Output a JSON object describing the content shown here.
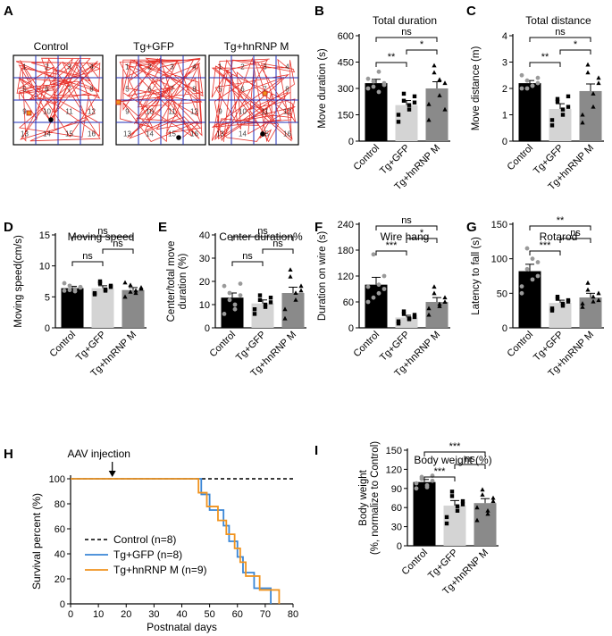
{
  "panels": {
    "A": {
      "letter": "A",
      "titles": [
        "Control",
        "Tg+GFP",
        "Tg+hnRNP M"
      ],
      "grid_numbers": [
        "1",
        "2",
        "3",
        "4",
        "5",
        "6",
        "7",
        "8",
        "9",
        "10",
        "11",
        "12",
        "13",
        "14",
        "15",
        "16"
      ]
    }
  },
  "colors": {
    "control": "#000000",
    "gfp": "#d4d4d4",
    "hnrnp": "#8a8a8a",
    "track": "#e8332c",
    "grid": "#1f2fb8",
    "curve_gfp": "#3a86d6",
    "curve_hnrnp": "#f0931e"
  },
  "chart_data": [
    {
      "panel": "B",
      "type": "bar",
      "title": "Total duration",
      "ylabel": "Move duration (s)",
      "ylim": [
        0,
        600
      ],
      "yticks": [
        0,
        150,
        300,
        450,
        600
      ],
      "categories": [
        "Control",
        "Tg+GFP",
        "Tg+hnRNP M"
      ],
      "values": [
        330,
        205,
        300
      ],
      "errors": [
        22,
        26,
        38
      ],
      "points": [
        [
          300,
          340,
          280,
          330,
          355,
          310,
          395,
          320
        ],
        [
          110,
          270,
          180,
          220,
          150,
          230,
          205,
          255
        ],
        [
          120,
          430,
          260,
          330,
          210,
          390,
          350,
          180
        ]
      ],
      "sig": [
        {
          "a": 0,
          "b": 1,
          "label": "**"
        },
        {
          "a": 1,
          "b": 2,
          "label": "*"
        },
        {
          "a": 0,
          "b": 2,
          "label": "ns"
        }
      ]
    },
    {
      "panel": "C",
      "type": "bar",
      "title": "Total distance",
      "ylabel": "Move distance (m)",
      "ylim": [
        0,
        4
      ],
      "yticks": [
        0,
        1,
        2,
        3,
        4
      ],
      "categories": [
        "Control",
        "Tg+GFP",
        "Tg+hnRNP M"
      ],
      "values": [
        2.2,
        1.22,
        1.9
      ],
      "errors": [
        0.1,
        0.2,
        0.27
      ],
      "points": [
        [
          2.0,
          2.3,
          2.1,
          2.2,
          2.5,
          2.0,
          2.1,
          2.4
        ],
        [
          0.6,
          1.6,
          1.0,
          1.3,
          0.8,
          1.5,
          1.2,
          1.7
        ],
        [
          0.7,
          2.9,
          1.3,
          2.2,
          1.0,
          2.6,
          1.8,
          2.4
        ]
      ],
      "sig": [
        {
          "a": 0,
          "b": 1,
          "label": "**"
        },
        {
          "a": 1,
          "b": 2,
          "label": "*"
        },
        {
          "a": 0,
          "b": 2,
          "label": "ns"
        }
      ]
    },
    {
      "panel": "D",
      "type": "bar",
      "title": "Moving speed",
      "ylabel": "Moving speed(cm/s)",
      "ylim": [
        0,
        15
      ],
      "yticks": [
        0,
        5,
        10,
        15
      ],
      "categories": [
        "Control",
        "Tg+GFP",
        "Tg+hnRNP M"
      ],
      "values": [
        6.4,
        6.4,
        6.1
      ],
      "errors": [
        0.3,
        0.4,
        0.4
      ],
      "points": [
        [
          6.0,
          6.8,
          5.9,
          6.5,
          7.2,
          6.1,
          6.3,
          6.6
        ],
        [
          5.4,
          7.5,
          6.0,
          6.8,
          5.6,
          7.2,
          6.2,
          6.6
        ],
        [
          5.0,
          6.9,
          5.6,
          6.3,
          7.3,
          5.8,
          6.0,
          6.5
        ]
      ],
      "sig": [
        {
          "a": 0,
          "b": 1,
          "label": "ns"
        },
        {
          "a": 1,
          "b": 2,
          "label": "ns"
        },
        {
          "a": 0,
          "b": 2,
          "label": "ns"
        }
      ]
    },
    {
      "panel": "E",
      "type": "bar",
      "title": "Center duration%",
      "ylabel": "Center/total move duration (%)",
      "ylim": [
        0,
        40
      ],
      "yticks": [
        0,
        10,
        20,
        30,
        40
      ],
      "categories": [
        "Control",
        "Tg+GFP",
        "Tg+hnRNP M"
      ],
      "values": [
        13,
        10.5,
        15
      ],
      "errors": [
        2.0,
        1.5,
        2.5
      ],
      "points": [
        [
          6,
          15,
          10,
          14,
          18,
          12,
          8,
          19
        ],
        [
          6,
          14,
          9,
          11,
          8,
          12,
          10,
          13
        ],
        [
          4,
          25,
          12,
          18,
          8,
          22,
          15,
          16
        ]
      ],
      "sig": [
        {
          "a": 0,
          "b": 1,
          "label": "ns"
        },
        {
          "a": 1,
          "b": 2,
          "label": "ns"
        },
        {
          "a": 0,
          "b": 2,
          "label": "ns"
        }
      ]
    },
    {
      "panel": "F",
      "type": "bar",
      "title": "Wire hang",
      "ylabel": "Duration on wire (s)",
      "ylim": [
        0,
        240
      ],
      "yticks": [
        0,
        60,
        120,
        180,
        240
      ],
      "categories": [
        "Control",
        "Tg+GFP",
        "Tg+hnRNP M"
      ],
      "values": [
        100,
        24,
        60
      ],
      "errors": [
        17,
        5,
        10
      ],
      "points": [
        [
          60,
          170,
          80,
          120,
          95,
          70,
          100,
          90
        ],
        [
          10,
          38,
          20,
          30,
          15,
          32,
          22,
          25
        ],
        [
          30,
          95,
          50,
          70,
          45,
          80,
          55,
          60
        ]
      ],
      "sig": [
        {
          "a": 0,
          "b": 1,
          "label": "***"
        },
        {
          "a": 1,
          "b": 2,
          "label": "*"
        },
        {
          "a": 0,
          "b": 2,
          "label": "ns"
        }
      ]
    },
    {
      "panel": "G",
      "type": "bar",
      "title": "Rotarod",
      "ylabel": "Latency to fall (s)",
      "ylim": [
        0,
        150
      ],
      "yticks": [
        0,
        50,
        100,
        150
      ],
      "categories": [
        "Control",
        "Tg+GFP",
        "Tg+hnRNP M"
      ],
      "values": [
        82,
        36,
        44
      ],
      "errors": [
        10,
        4,
        6
      ],
      "points": [
        [
          50,
          115,
          70,
          95,
          60,
          85,
          100,
          75
        ],
        [
          25,
          45,
          32,
          38,
          28,
          42,
          35,
          40
        ],
        [
          30,
          65,
          38,
          50,
          35,
          55,
          45,
          40
        ]
      ],
      "sig": [
        {
          "a": 0,
          "b": 1,
          "label": "***"
        },
        {
          "a": 1,
          "b": 2,
          "label": "ns"
        },
        {
          "a": 0,
          "b": 2,
          "label": "**"
        }
      ]
    },
    {
      "panel": "I",
      "type": "bar",
      "title": "Body weight (%)",
      "ylabel": "Body weight (%, normalize to Control)",
      "ylim": [
        0,
        150
      ],
      "yticks": [
        0,
        30,
        60,
        90,
        120,
        150
      ],
      "categories": [
        "Control",
        "Tg+GFP",
        "Tg+hnRNP M"
      ],
      "values": [
        100,
        63,
        67
      ],
      "errors": [
        4,
        8,
        7
      ],
      "points": [
        [
          90,
          108,
          95,
          102,
          98,
          105,
          92,
          110
        ],
        [
          35,
          85,
          55,
          70,
          45,
          78,
          62,
          65
        ],
        [
          40,
          88,
          55,
          75,
          60,
          80,
          50,
          70
        ]
      ],
      "sig": [
        {
          "a": 0,
          "b": 1,
          "label": "***"
        },
        {
          "a": 1,
          "b": 2,
          "label": "ns"
        },
        {
          "a": 0,
          "b": 2,
          "label": "***"
        }
      ]
    },
    {
      "panel": "H",
      "type": "line",
      "xlabel": "Postnatal days",
      "ylabel": "Survival percent (%)",
      "xlim": [
        0,
        80
      ],
      "ylim": [
        0,
        100
      ],
      "xticks": [
        0,
        10,
        20,
        30,
        40,
        50,
        60,
        70,
        80
      ],
      "yticks": [
        0,
        20,
        40,
        60,
        80,
        100
      ],
      "annotation": "AAV injection",
      "annotation_day": 15,
      "series": [
        {
          "name": "Control (n=8)",
          "style": "dashed",
          "x": [
            0,
            80
          ],
          "y": [
            100,
            100
          ]
        },
        {
          "name": "Tg+GFP (n=8)",
          "style": "solid",
          "x": [
            0,
            47,
            50,
            55,
            57,
            60,
            62,
            64,
            66,
            70,
            72
          ],
          "y": [
            100,
            87.5,
            75,
            62.5,
            50,
            37.5,
            25,
            25,
            12.5,
            12.5,
            0
          ]
        },
        {
          "name": "Tg+hnRNP M (n=9)",
          "style": "solid",
          "x": [
            0,
            46,
            49,
            53,
            56,
            59,
            61,
            63,
            65,
            68,
            73,
            75
          ],
          "y": [
            100,
            88.9,
            77.8,
            66.7,
            55.6,
            44.4,
            33.3,
            22.2,
            22.2,
            11.1,
            11.1,
            0
          ]
        }
      ]
    }
  ]
}
